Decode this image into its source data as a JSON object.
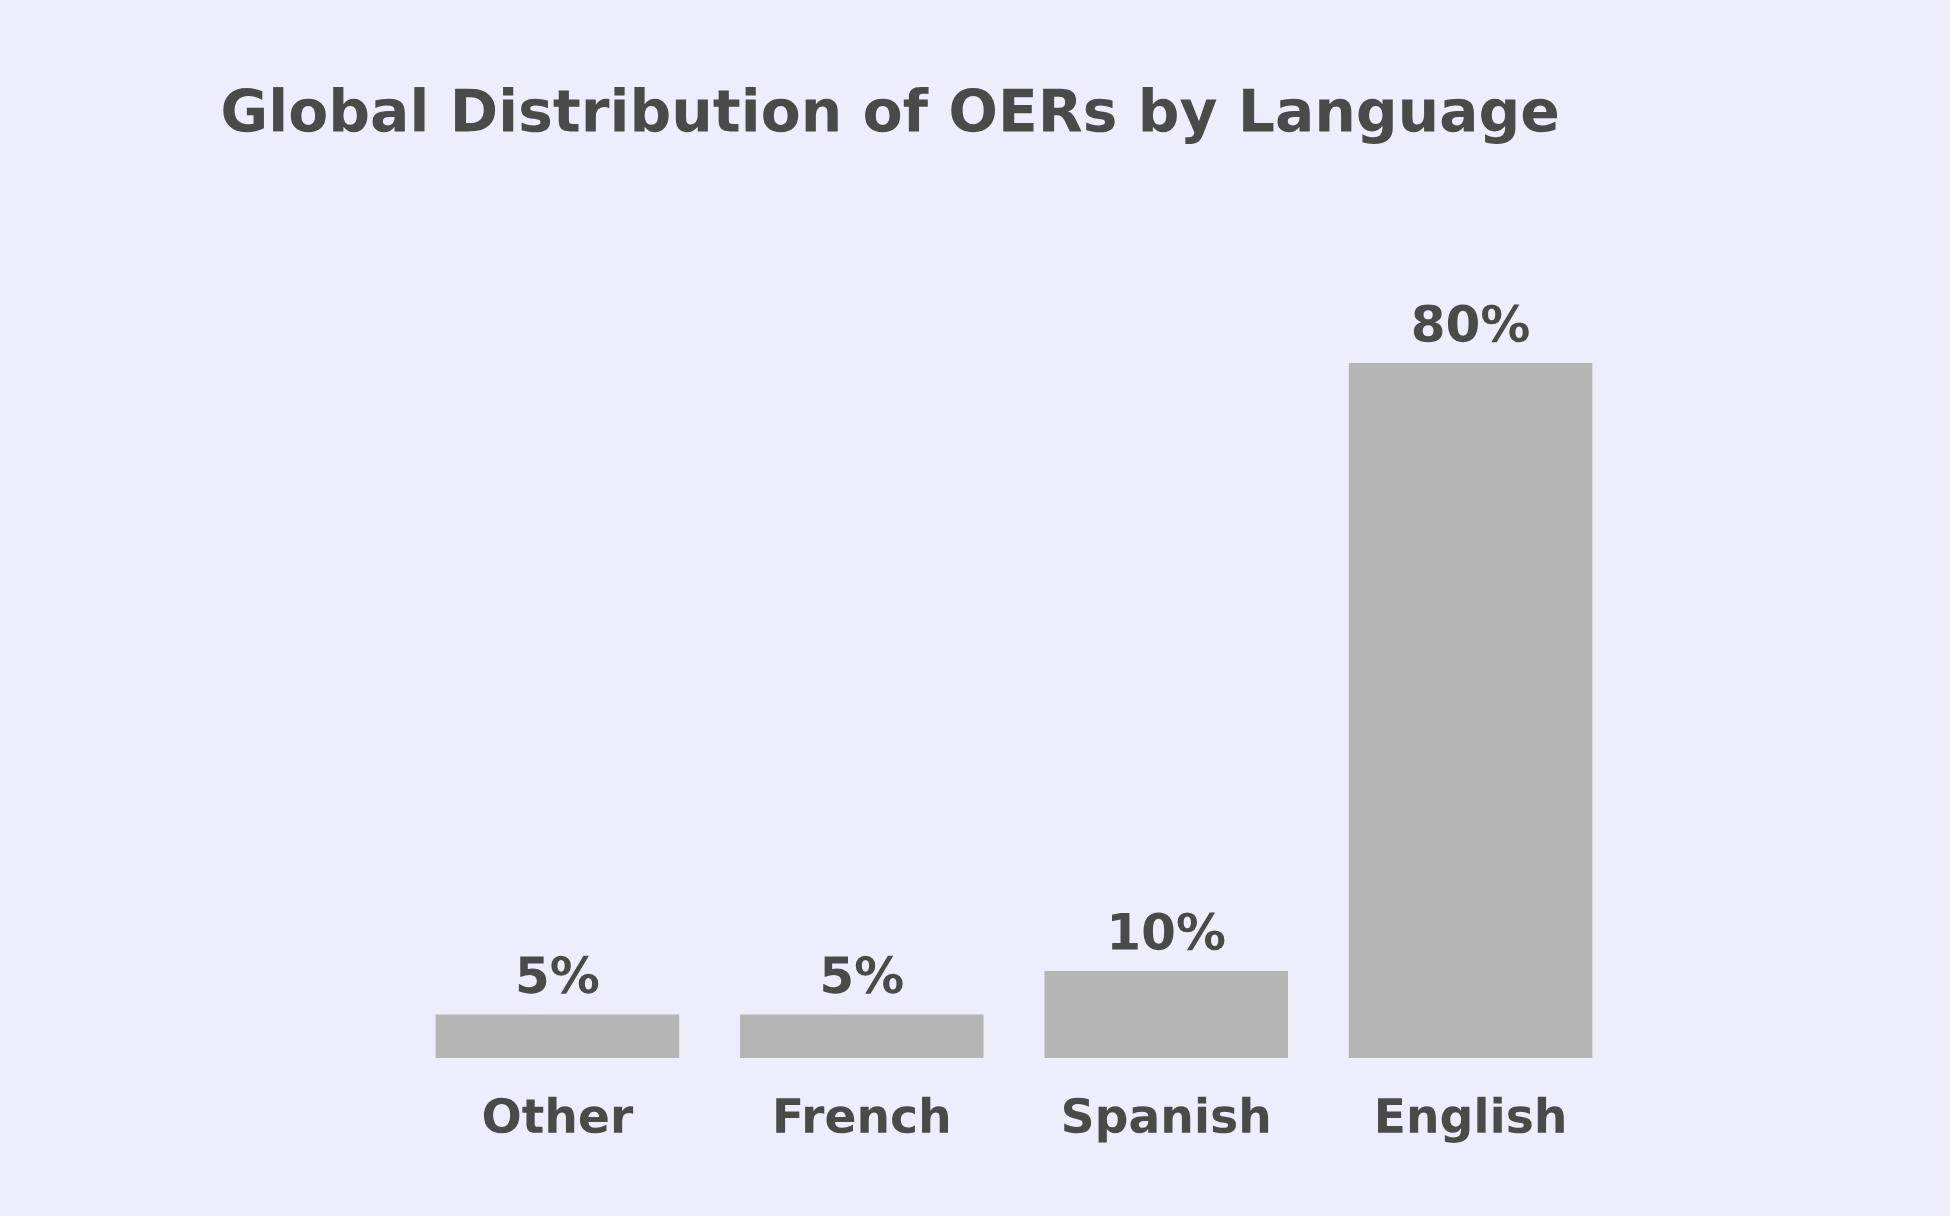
{
  "chart_data": {
    "type": "bar",
    "title": "Global Distribution of OERs by Language",
    "categories": [
      "Other",
      "French",
      "Spanish",
      "English"
    ],
    "values": [
      5,
      5,
      10,
      80
    ],
    "value_labels": [
      "5%",
      "5%",
      "10%",
      "80%"
    ],
    "color": "#b5b5b5"
  }
}
